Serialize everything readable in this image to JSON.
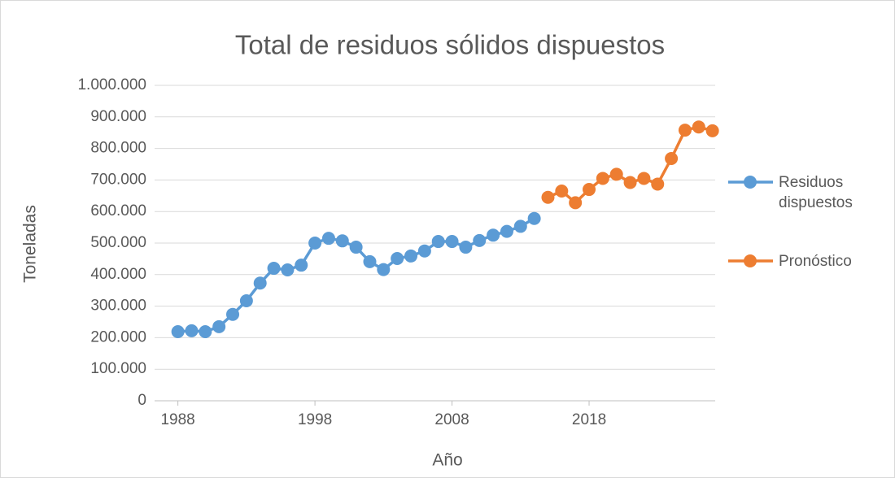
{
  "chart_data": {
    "type": "line",
    "title": "Total de residuos sólidos dispuestos",
    "x_label": "Año",
    "y_label": "Toneladas",
    "xlim": [
      1986.3,
      2027.2
    ],
    "xticks": [
      1988,
      1998,
      2008,
      2018
    ],
    "ylim": [
      0,
      1000000
    ],
    "yticks": [
      0,
      {
        "value": 100000,
        "label": "100.000"
      },
      {
        "value": 200000,
        "label": "200.000"
      },
      {
        "value": 300000,
        "label": "300.000"
      },
      {
        "value": 400000,
        "label": "400.000"
      },
      {
        "value": 500000,
        "label": "500.000"
      },
      {
        "value": 600000,
        "label": "600.000"
      },
      {
        "value": 700000,
        "label": "700.000"
      },
      {
        "value": 800000,
        "label": "800.000"
      },
      {
        "value": 900000,
        "label": "900.000"
      },
      {
        "value": 1000000,
        "label": "1.000.000"
      }
    ],
    "grid": true,
    "legend": "right",
    "series": [
      {
        "name": "Residuos dispuestos",
        "color": "#5b9bd5",
        "x": [
          1988,
          1989,
          1990,
          1991,
          1992,
          1993,
          1994,
          1995,
          1996,
          1997,
          1998,
          1999,
          2000,
          2001,
          2002,
          2003,
          2004,
          2005,
          2006,
          2007,
          2008,
          2009,
          2010,
          2011,
          2012,
          2013,
          2014
        ],
        "values": [
          219000,
          222000,
          219000,
          235000,
          274000,
          317000,
          373000,
          420000,
          415000,
          430000,
          500000,
          515000,
          507000,
          487000,
          441000,
          416000,
          451000,
          459000,
          475000,
          505000,
          505000,
          487000,
          508000,
          525000,
          537000,
          553000,
          578000
        ]
      },
      {
        "name": "Pronóstico",
        "color": "#ed7d31",
        "x": [
          2015,
          2016,
          2017,
          2018,
          2019,
          2020,
          2021,
          2022,
          2023,
          2024,
          2025,
          2026,
          2027
        ],
        "values": [
          645000,
          665000,
          628000,
          670000,
          705000,
          718000,
          692000,
          705000,
          687000,
          768000,
          858000,
          868000,
          856000
        ]
      }
    ]
  }
}
